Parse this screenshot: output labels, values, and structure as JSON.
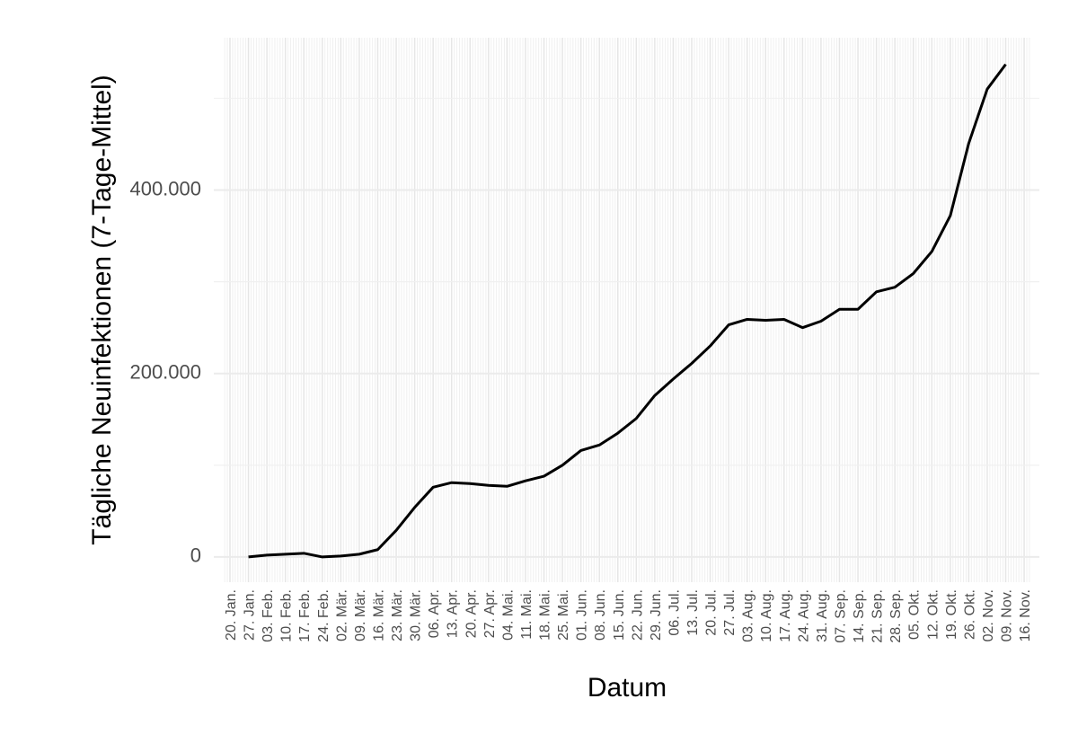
{
  "chart_data": {
    "type": "line",
    "x_label": "Datum",
    "y_label": "Tägliche Neuinfektionen (7-Tage-Mittel)",
    "categories": [
      "20. Jan.",
      "27. Jan.",
      "03. Feb.",
      "10. Feb.",
      "17. Feb.",
      "24. Feb.",
      "02. Mär.",
      "09. Mär.",
      "16. Mär.",
      "23. Mär.",
      "30. Mär.",
      "06. Apr.",
      "13. Apr.",
      "20. Apr.",
      "27. Apr.",
      "04. Mai.",
      "11. Mai.",
      "18. Mai.",
      "25. Mai.",
      "01. Jun.",
      "08. Jun.",
      "15. Jun.",
      "22. Jun.",
      "29. Jun.",
      "06. Jul.",
      "13. Jul.",
      "20. Jul.",
      "27. Jul.",
      "03. Aug.",
      "10. Aug.",
      "17. Aug.",
      "24. Aug.",
      "31. Aug.",
      "07. Sep.",
      "14. Sep.",
      "21. Sep.",
      "28. Sep.",
      "05. Okt.",
      "12. Okt.",
      "19. Okt.",
      "26. Okt.",
      "02. Nov.",
      "09. Nov.",
      "16. Nov."
    ],
    "values": [
      null,
      0,
      2000,
      3000,
      4000,
      0,
      1000,
      3000,
      8000,
      29000,
      54000,
      76000,
      81000,
      80000,
      78000,
      77000,
      83000,
      88000,
      100000,
      116000,
      122000,
      135000,
      151000,
      176000,
      194000,
      211000,
      230000,
      253000,
      259000,
      258000,
      259000,
      250000,
      257000,
      270000,
      270000,
      289000,
      294000,
      309000,
      333000,
      372000,
      451000,
      510000,
      537000,
      null
    ],
    "color": "#000000",
    "ylim": [
      -27500,
      566000
    ],
    "yticks": [
      0,
      {
        "value": 200000,
        "label": "200.000"
      },
      {
        "value": 400000,
        "label": "400.000"
      }
    ],
    "grid": true
  }
}
